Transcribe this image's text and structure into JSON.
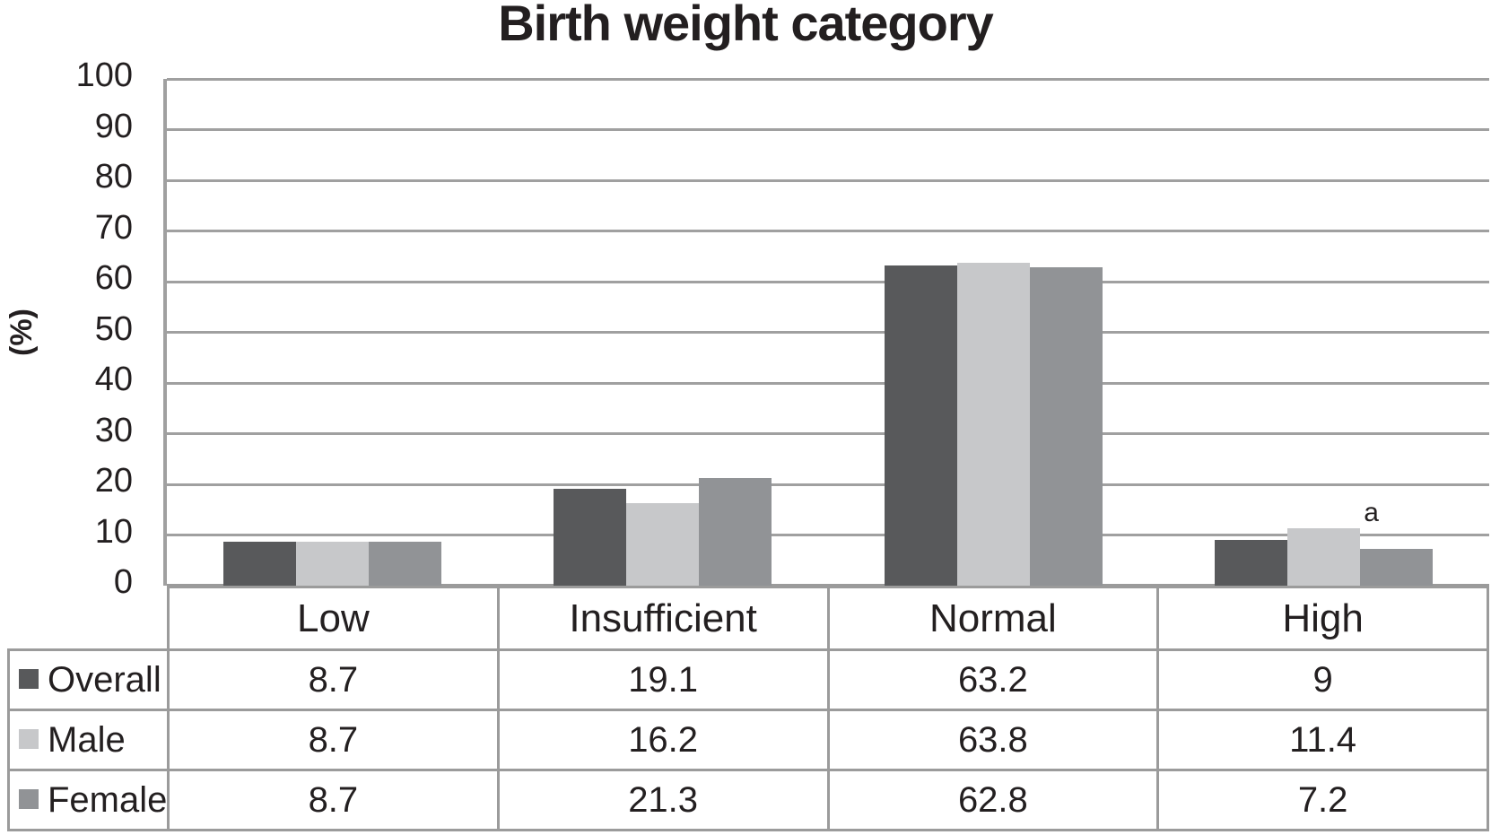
{
  "chart_data": {
    "type": "bar",
    "title": "Birth weight category",
    "ylabel": "(%)",
    "xlabel": "",
    "ylim": [
      0,
      100
    ],
    "yticks": [
      0,
      10,
      20,
      30,
      40,
      50,
      60,
      70,
      80,
      90,
      100
    ],
    "grid": true,
    "legend_position": "table-left",
    "categories": [
      "Low",
      "Insufficient",
      "Normal",
      "High"
    ],
    "series": [
      {
        "name": "Overall",
        "color": "#58595B",
        "values": [
          8.7,
          19.1,
          63.2,
          9
        ]
      },
      {
        "name": "Male",
        "color": "#C7C8CA",
        "values": [
          8.7,
          16.2,
          63.8,
          11.4
        ]
      },
      {
        "name": "Female",
        "color": "#919396",
        "values": [
          8.7,
          21.3,
          62.8,
          7.2
        ]
      }
    ],
    "annotation": {
      "text": "a",
      "category": "High",
      "series": "Male",
      "placement": "above-bar-right"
    },
    "colors": {
      "gridline": "#A0A0A0",
      "table_border": "#9B9B9B",
      "text": "#231F20"
    }
  }
}
